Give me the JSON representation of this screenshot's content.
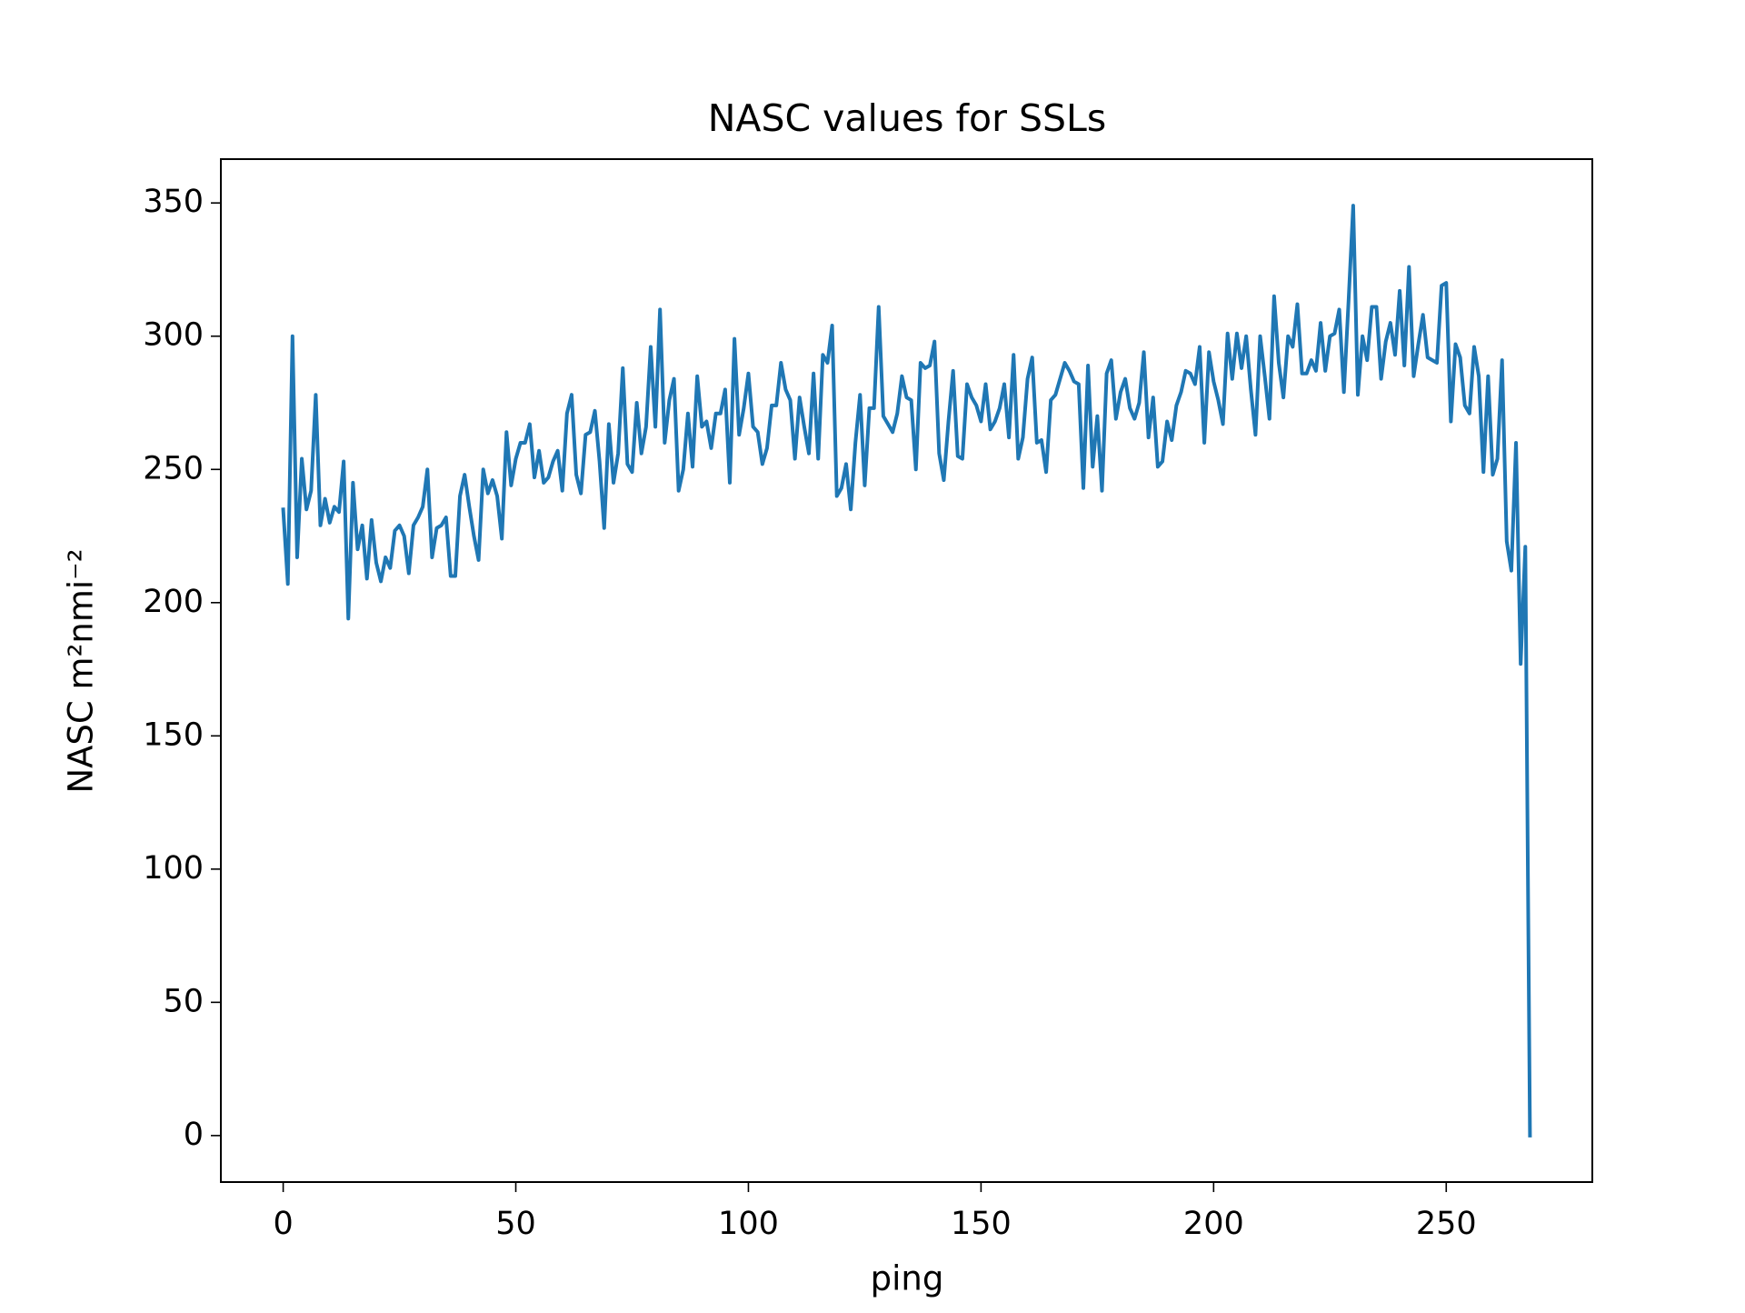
{
  "chart_data": {
    "type": "line",
    "title": "NASC values for SSLs",
    "xlabel": "ping",
    "ylabel": "NASC m²nmi⁻²",
    "color": "#1f77b4",
    "grid": false,
    "x": [
      0,
      1,
      2,
      3,
      4,
      5,
      6,
      7,
      8,
      9,
      10,
      11,
      12,
      13,
      14,
      15,
      16,
      17,
      18,
      19,
      20,
      21,
      22,
      23,
      24,
      25,
      26,
      27,
      28,
      29,
      30,
      31,
      32,
      33,
      34,
      35,
      36,
      37,
      38,
      39,
      40,
      41,
      42,
      43,
      44,
      45,
      46,
      47,
      48,
      49,
      50,
      51,
      52,
      53,
      54,
      55,
      56,
      57,
      58,
      59,
      60,
      61,
      62,
      63,
      64,
      65,
      66,
      67,
      68,
      69,
      70,
      71,
      72,
      73,
      74,
      75,
      76,
      77,
      78,
      79,
      80,
      81,
      82,
      83,
      84,
      85,
      86,
      87,
      88,
      89,
      90,
      91,
      92,
      93,
      94,
      95,
      96,
      97,
      98,
      99,
      100,
      101,
      102,
      103,
      104,
      105,
      106,
      107,
      108,
      109,
      110,
      111,
      112,
      113,
      114,
      115,
      116,
      117,
      118,
      119,
      120,
      121,
      122,
      123,
      124,
      125,
      126,
      127,
      128,
      129,
      130,
      131,
      132,
      133,
      134,
      135,
      136,
      137,
      138,
      139,
      140,
      141,
      142,
      143,
      144,
      145,
      146,
      147,
      148,
      149,
      150,
      151,
      152,
      153,
      154,
      155,
      156,
      157,
      158,
      159,
      160,
      161,
      162,
      163,
      164,
      165,
      166,
      167,
      168,
      169,
      170,
      171,
      172,
      173,
      174,
      175,
      176,
      177,
      178,
      179,
      180,
      181,
      182,
      183,
      184,
      185,
      186,
      187,
      188,
      189,
      190,
      191,
      192,
      193,
      194,
      195,
      196,
      197,
      198,
      199,
      200,
      201,
      202,
      203,
      204,
      205,
      206,
      207,
      208,
      209,
      210,
      211,
      212,
      213,
      214,
      215,
      216,
      217,
      218,
      219,
      220,
      221,
      222,
      223,
      224,
      225,
      226,
      227,
      228,
      229,
      230,
      231,
      232,
      233,
      234,
      235,
      236,
      237,
      238,
      239,
      240,
      241,
      242,
      243,
      244,
      245,
      246,
      247,
      248,
      249,
      250,
      251,
      252,
      253,
      254,
      255,
      256,
      257,
      258,
      259,
      260,
      261,
      262,
      263,
      264,
      265,
      266,
      267,
      268
    ],
    "values": [
      235,
      207,
      300,
      217,
      254,
      235,
      242,
      278,
      229,
      239,
      230,
      236,
      234,
      253,
      194,
      245,
      220,
      229,
      209,
      231,
      215,
      208,
      217,
      213,
      227,
      229,
      225,
      211,
      229,
      232,
      236,
      250,
      217,
      228,
      229,
      232,
      210,
      210,
      240,
      248,
      236,
      225,
      216,
      250,
      241,
      246,
      240,
      224,
      264,
      244,
      254,
      260,
      260,
      267,
      247,
      257,
      245,
      247,
      253,
      257,
      242,
      271,
      278,
      248,
      241,
      263,
      264,
      272,
      253,
      228,
      267,
      245,
      256,
      288,
      252,
      249,
      275,
      256,
      266,
      296,
      266,
      310,
      260,
      276,
      284,
      242,
      250,
      271,
      251,
      285,
      266,
      268,
      258,
      271,
      271,
      280,
      245,
      299,
      263,
      273,
      286,
      266,
      264,
      252,
      258,
      274,
      274,
      290,
      280,
      276,
      254,
      277,
      266,
      256,
      286,
      254,
      293,
      290,
      304,
      240,
      243,
      252,
      235,
      260,
      278,
      244,
      273,
      273,
      311,
      270,
      267,
      264,
      271,
      285,
      277,
      276,
      250,
      290,
      288,
      289,
      298,
      256,
      246,
      268,
      287,
      255,
      254,
      282,
      277,
      274,
      268,
      282,
      265,
      268,
      273,
      282,
      262,
      293,
      254,
      262,
      284,
      292,
      260,
      261,
      249,
      276,
      278,
      284,
      290,
      287,
      283,
      282,
      243,
      289,
      251,
      270,
      242,
      286,
      291,
      269,
      279,
      284,
      273,
      269,
      275,
      294,
      262,
      277,
      251,
      253,
      268,
      261,
      274,
      279,
      287,
      286,
      282,
      296,
      260,
      294,
      283,
      276,
      267,
      301,
      284,
      301,
      288,
      300,
      280,
      263,
      300,
      285,
      269,
      315,
      290,
      277,
      300,
      296,
      312,
      286,
      286,
      291,
      287,
      305,
      287,
      300,
      301,
      310,
      279,
      313,
      349,
      278,
      300,
      291,
      311,
      311,
      284,
      298,
      305,
      293,
      317,
      289,
      326,
      285,
      297,
      308,
      292,
      291,
      290,
      319,
      320,
      268,
      297,
      292,
      274,
      271,
      296,
      285,
      249,
      285,
      248,
      254,
      291,
      223,
      212,
      260,
      177,
      221,
      0
    ],
    "xlim": [
      -13.4,
      281.4
    ],
    "ylim": [
      -17.45,
      366.45
    ],
    "xticks": [
      0,
      50,
      100,
      150,
      200,
      250
    ],
    "yticks": [
      0,
      50,
      100,
      150,
      200,
      250,
      300,
      350
    ]
  }
}
